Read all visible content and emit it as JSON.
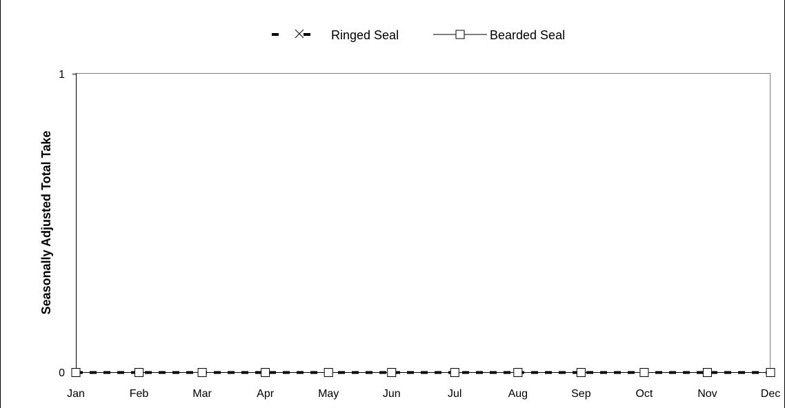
{
  "chart_data": {
    "type": "line",
    "title": "",
    "xlabel": "",
    "ylabel": "Seasonally Adjusted Total Take",
    "categories": [
      "Jan",
      "Feb",
      "Mar",
      "Apr",
      "May",
      "Jun",
      "Jul",
      "Aug",
      "Sep",
      "Oct",
      "Nov",
      "Dec"
    ],
    "yticks": [
      "0",
      "1"
    ],
    "ylim": [
      0,
      1
    ],
    "grid": false,
    "legend": "top",
    "series": [
      {
        "name": "Ringed Seal",
        "marker": "x",
        "line": "dashed",
        "color": "#000000",
        "values": [
          0,
          0,
          0,
          0,
          0,
          0,
          0,
          0,
          0,
          0,
          0,
          0
        ]
      },
      {
        "name": "Bearded Seal",
        "marker": "open-square",
        "line": "solid",
        "color": "#000000",
        "values": [
          0,
          0,
          0,
          0,
          0,
          0,
          0,
          0,
          0,
          0,
          0,
          0
        ]
      }
    ]
  }
}
